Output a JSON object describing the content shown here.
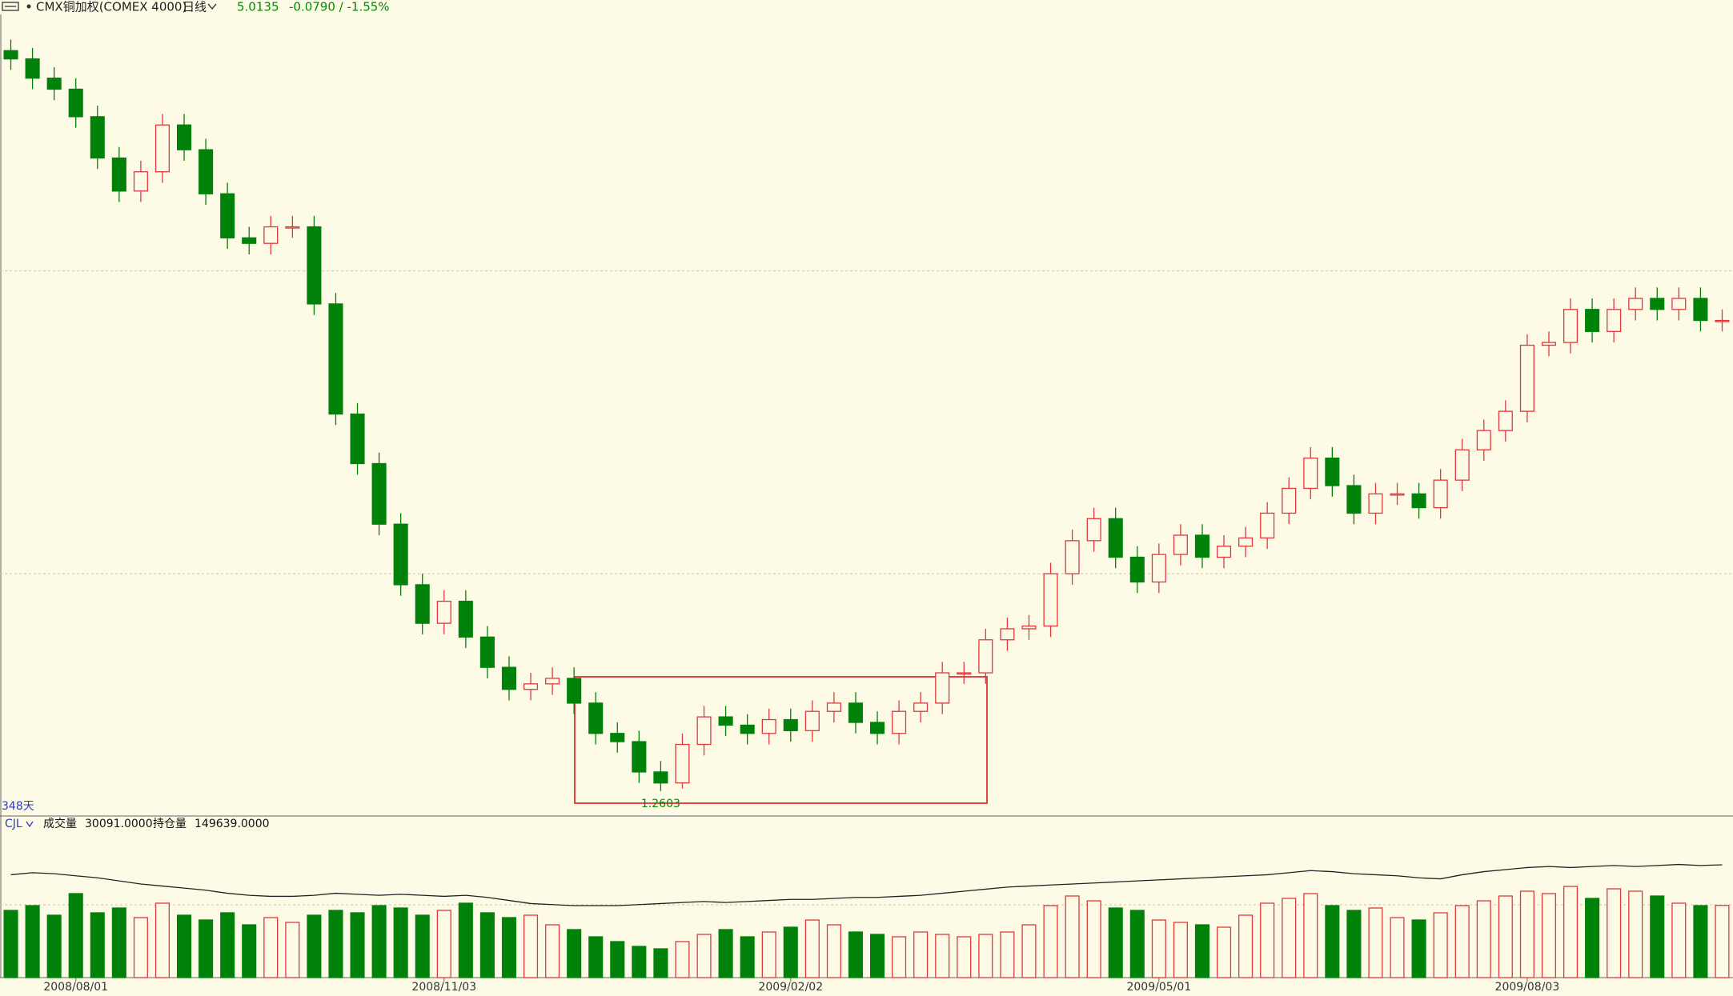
{
  "header": {
    "symbol": "CMX铜加权(COMEX 4000)",
    "period": "日线",
    "last": "5.0135",
    "change": "-0.0790 / -1.55%"
  },
  "chart_data": [
    {
      "type": "candlestick",
      "categories": [
        null,
        null,
        null,
        "2008/08/01",
        null,
        null,
        null,
        null,
        null,
        null,
        null,
        null,
        null,
        null,
        null,
        null,
        null,
        null,
        null,
        null,
        "2008/11/03",
        null,
        null,
        null,
        null,
        null,
        null,
        null,
        null,
        null,
        null,
        null,
        null,
        null,
        null,
        null,
        "2009/02/02",
        null,
        null,
        null,
        null,
        null,
        null,
        null,
        null,
        null,
        null,
        null,
        null,
        null,
        null,
        null,
        null,
        "2009/05/01",
        null,
        null,
        null,
        null,
        null,
        null,
        null,
        null,
        null,
        null,
        null,
        null,
        null,
        null,
        null,
        null,
        "2009/08/03",
        null,
        null,
        null,
        null,
        null,
        null,
        null,
        null,
        null
      ],
      "open": [
        3.95,
        3.92,
        3.85,
        3.81,
        3.71,
        3.56,
        3.44,
        3.51,
        3.68,
        3.59,
        3.43,
        3.27,
        3.25,
        3.31,
        3.31,
        3.03,
        2.63,
        2.45,
        2.23,
        2.01,
        1.87,
        1.95,
        1.82,
        1.71,
        1.63,
        1.65,
        1.67,
        1.58,
        1.47,
        1.44,
        1.33,
        1.29,
        1.43,
        1.53,
        1.5,
        1.47,
        1.52,
        1.48,
        1.55,
        1.58,
        1.51,
        1.47,
        1.55,
        1.58,
        1.69,
        1.69,
        1.81,
        1.85,
        1.86,
        2.05,
        2.17,
        2.25,
        2.11,
        2.02,
        2.12,
        2.19,
        2.11,
        2.15,
        2.18,
        2.27,
        2.36,
        2.47,
        2.37,
        2.27,
        2.34,
        2.34,
        2.29,
        2.39,
        2.5,
        2.57,
        2.64,
        2.88,
        2.89,
        3.01,
        2.93,
        3.01,
        3.05,
        3.01,
        3.05,
        2.97
      ],
      "high": [
        3.99,
        3.96,
        3.89,
        3.85,
        3.75,
        3.6,
        3.55,
        3.72,
        3.72,
        3.63,
        3.47,
        3.31,
        3.35,
        3.35,
        3.35,
        3.07,
        2.67,
        2.49,
        2.27,
        2.05,
        1.99,
        1.99,
        1.86,
        1.75,
        1.69,
        1.71,
        1.71,
        1.62,
        1.51,
        1.48,
        1.37,
        1.47,
        1.57,
        1.57,
        1.54,
        1.56,
        1.56,
        1.59,
        1.62,
        1.62,
        1.55,
        1.59,
        1.62,
        1.73,
        1.73,
        1.85,
        1.89,
        1.9,
        2.09,
        2.21,
        2.29,
        2.29,
        2.15,
        2.16,
        2.23,
        2.23,
        2.19,
        2.22,
        2.31,
        2.4,
        2.51,
        2.51,
        2.41,
        2.38,
        2.38,
        2.38,
        2.43,
        2.54,
        2.61,
        2.68,
        2.92,
        2.93,
        3.05,
        3.05,
        3.05,
        3.09,
        3.09,
        3.09,
        3.09,
        3.01
      ],
      "low": [
        3.88,
        3.81,
        3.77,
        3.67,
        3.52,
        3.4,
        3.4,
        3.47,
        3.55,
        3.39,
        3.23,
        3.21,
        3.21,
        3.27,
        2.99,
        2.59,
        2.41,
        2.19,
        1.97,
        1.83,
        1.83,
        1.78,
        1.67,
        1.59,
        1.59,
        1.61,
        1.54,
        1.43,
        1.4,
        1.29,
        1.2603,
        1.27,
        1.39,
        1.46,
        1.43,
        1.43,
        1.44,
        1.44,
        1.51,
        1.47,
        1.43,
        1.43,
        1.51,
        1.54,
        1.65,
        1.65,
        1.77,
        1.81,
        1.82,
        2.01,
        2.13,
        2.07,
        1.98,
        1.98,
        2.08,
        2.07,
        2.07,
        2.11,
        2.14,
        2.23,
        2.32,
        2.33,
        2.23,
        2.23,
        2.3,
        2.25,
        2.25,
        2.35,
        2.46,
        2.53,
        2.6,
        2.84,
        2.85,
        2.89,
        2.89,
        2.97,
        2.97,
        2.97,
        2.93,
        2.93
      ],
      "close": [
        3.92,
        3.85,
        3.81,
        3.71,
        3.56,
        3.44,
        3.51,
        3.68,
        3.59,
        3.43,
        3.27,
        3.25,
        3.31,
        3.31,
        3.03,
        2.63,
        2.45,
        2.23,
        2.01,
        1.87,
        1.95,
        1.82,
        1.71,
        1.63,
        1.65,
        1.67,
        1.58,
        1.47,
        1.44,
        1.33,
        1.29,
        1.43,
        1.53,
        1.5,
        1.47,
        1.52,
        1.48,
        1.55,
        1.58,
        1.51,
        1.47,
        1.55,
        1.58,
        1.69,
        1.69,
        1.81,
        1.85,
        1.86,
        2.05,
        2.17,
        2.25,
        2.11,
        2.02,
        2.12,
        2.19,
        2.11,
        2.15,
        2.18,
        2.27,
        2.36,
        2.47,
        2.37,
        2.27,
        2.34,
        2.34,
        2.29,
        2.39,
        2.5,
        2.57,
        2.64,
        2.88,
        2.89,
        3.01,
        2.93,
        3.01,
        3.05,
        3.01,
        3.05,
        2.97,
        2.97
      ],
      "ylim": [
        1.17,
        4.07
      ],
      "grid_lines": [
        2.05,
        3.15
      ],
      "up_color": "#e0383d",
      "down_color": "#00820a",
      "span_label": "348天"
    },
    {
      "type": "volume",
      "indicator": "CJL",
      "readouts": [
        {
          "value": 30091,
          "label": "30091.0000"
        },
        {
          "value": 149639,
          "label": "149639.0000"
        }
      ],
      "series": [
        {
          "name": "成交量",
          "values": [
            28000,
            30000,
            26000,
            35000,
            27000,
            29000,
            25000,
            31000,
            26000,
            24000,
            27000,
            22000,
            25000,
            23000,
            26000,
            28000,
            27000,
            30000,
            29000,
            26000,
            28000,
            31000,
            27000,
            25000,
            26000,
            22000,
            20000,
            17000,
            15000,
            13000,
            12000,
            15000,
            18000,
            20000,
            17000,
            19000,
            21000,
            24000,
            22000,
            19000,
            18000,
            17000,
            19000,
            18000,
            17000,
            18000,
            19000,
            22000,
            30000,
            34000,
            32000,
            29000,
            28000,
            24000,
            23000,
            22000,
            21000,
            26000,
            31000,
            33000,
            35000,
            30000,
            28000,
            29000,
            25000,
            24000,
            27000,
            30000,
            32000,
            34000,
            36000,
            35000,
            38000,
            33000,
            37000,
            36000,
            34000,
            31000,
            30000,
            30091
          ]
        },
        {
          "name": "持仓量",
          "axis": "y2",
          "color": "#222222",
          "values": [
            140000,
            142000,
            141000,
            139000,
            137000,
            134000,
            131000,
            129000,
            127000,
            125000,
            122000,
            120000,
            119000,
            119000,
            120000,
            122000,
            121000,
            120000,
            121000,
            120000,
            119000,
            120000,
            118000,
            115000,
            112000,
            111000,
            110000,
            110000,
            110000,
            111000,
            112000,
            113000,
            114000,
            113000,
            114000,
            115000,
            116000,
            116000,
            117000,
            118000,
            118000,
            119000,
            120000,
            122000,
            124000,
            126000,
            128000,
            129000,
            130000,
            131000,
            132000,
            133000,
            134000,
            135000,
            136000,
            137000,
            138000,
            139000,
            140000,
            142000,
            144000,
            143000,
            141000,
            140000,
            139000,
            137000,
            136000,
            140000,
            143000,
            145000,
            147000,
            148000,
            147000,
            148000,
            149000,
            148000,
            149000,
            150000,
            149000,
            149639
          ]
        }
      ],
      "ylim": [
        0,
        60000
      ],
      "y2lim": [
        40000,
        180000
      ]
    }
  ]
}
